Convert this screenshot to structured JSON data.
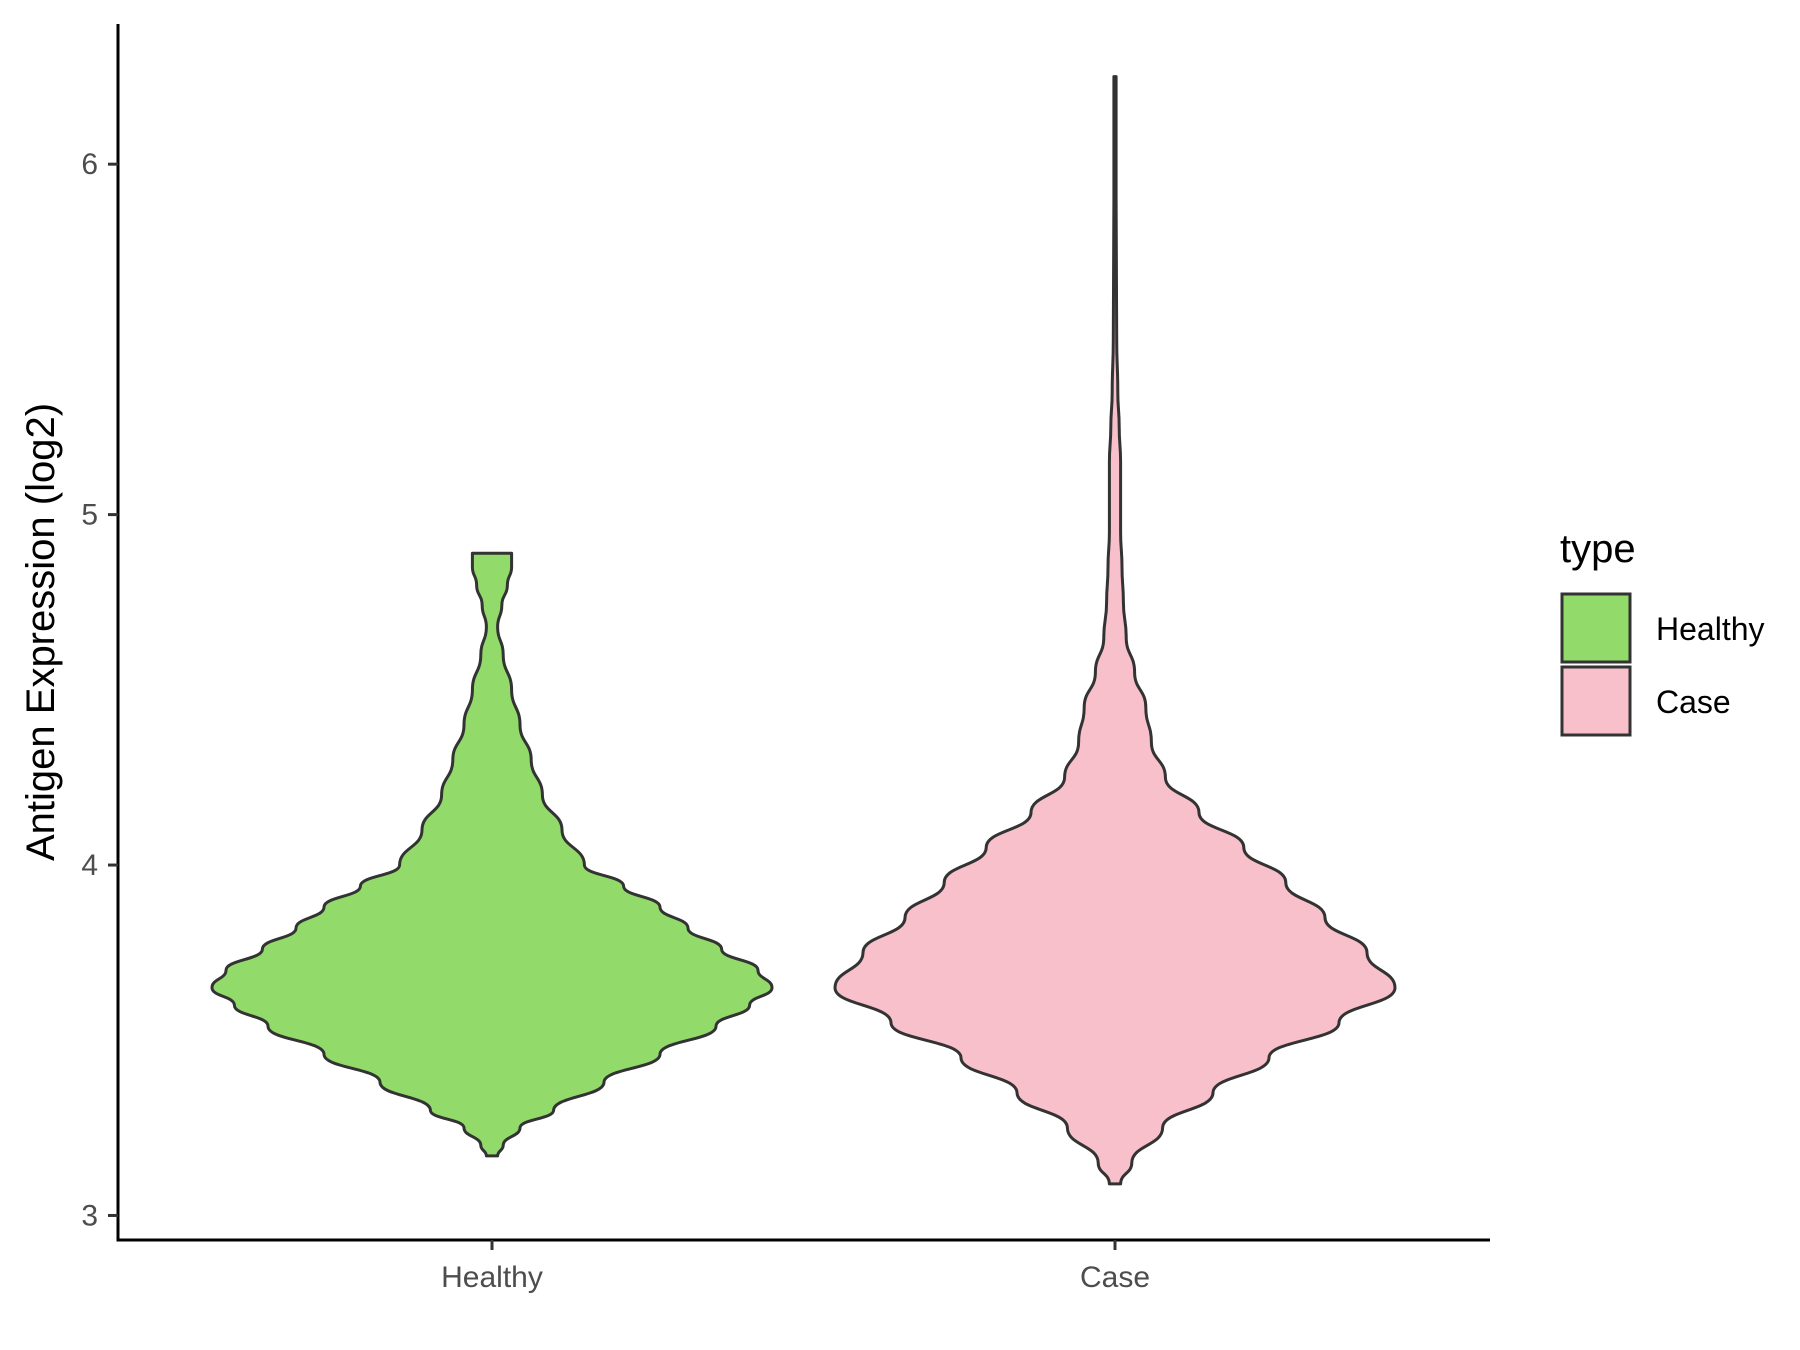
{
  "chart_data": {
    "type": "violin",
    "title": "",
    "xlabel": "",
    "ylabel": "Antigen Expression (log2)",
    "ylim": [
      2.93,
      6.4
    ],
    "yticks": [
      3,
      4,
      5,
      6
    ],
    "categories": [
      "Healthy",
      "Case"
    ],
    "legend": {
      "title": "type",
      "position": "right",
      "entries": [
        {
          "label": "Healthy",
          "color": "#92db6a"
        },
        {
          "label": "Case",
          "color": "#f7c0cb"
        }
      ]
    },
    "grid": false,
    "series": [
      {
        "name": "Healthy",
        "color": "#92db6a",
        "min": 3.17,
        "max": 4.89,
        "density": [
          [
            3.17,
            0.02
          ],
          [
            3.2,
            0.04
          ],
          [
            3.25,
            0.1
          ],
          [
            3.3,
            0.22
          ],
          [
            3.38,
            0.4
          ],
          [
            3.46,
            0.6
          ],
          [
            3.54,
            0.8
          ],
          [
            3.6,
            0.92
          ],
          [
            3.65,
            1.0
          ],
          [
            3.7,
            0.95
          ],
          [
            3.76,
            0.82
          ],
          [
            3.82,
            0.7
          ],
          [
            3.88,
            0.6
          ],
          [
            3.94,
            0.47
          ],
          [
            4.0,
            0.33
          ],
          [
            4.1,
            0.25
          ],
          [
            4.2,
            0.18
          ],
          [
            4.3,
            0.14
          ],
          [
            4.4,
            0.1
          ],
          [
            4.5,
            0.07
          ],
          [
            4.6,
            0.04
          ],
          [
            4.68,
            0.02
          ],
          [
            4.74,
            0.035
          ],
          [
            4.8,
            0.055
          ],
          [
            4.85,
            0.07
          ],
          [
            4.89,
            0.07
          ]
        ]
      },
      {
        "name": "Case",
        "color": "#f7c0cb",
        "min": 3.09,
        "max": 6.25,
        "density": [
          [
            3.09,
            0.02
          ],
          [
            3.15,
            0.06
          ],
          [
            3.25,
            0.17
          ],
          [
            3.35,
            0.35
          ],
          [
            3.45,
            0.55
          ],
          [
            3.55,
            0.8
          ],
          [
            3.65,
            1.0
          ],
          [
            3.75,
            0.9
          ],
          [
            3.85,
            0.75
          ],
          [
            3.95,
            0.61
          ],
          [
            4.05,
            0.46
          ],
          [
            4.15,
            0.3
          ],
          [
            4.25,
            0.18
          ],
          [
            4.35,
            0.13
          ],
          [
            4.45,
            0.11
          ],
          [
            4.55,
            0.07
          ],
          [
            4.65,
            0.04
          ],
          [
            4.75,
            0.03
          ],
          [
            4.85,
            0.025
          ],
          [
            4.95,
            0.02
          ],
          [
            5.05,
            0.02
          ],
          [
            5.15,
            0.02
          ],
          [
            5.25,
            0.015
          ],
          [
            5.35,
            0.01
          ],
          [
            5.5,
            0.006
          ],
          [
            5.7,
            0.005
          ],
          [
            5.9,
            0.004
          ],
          [
            6.1,
            0.004
          ],
          [
            6.25,
            0.004
          ]
        ]
      }
    ]
  }
}
